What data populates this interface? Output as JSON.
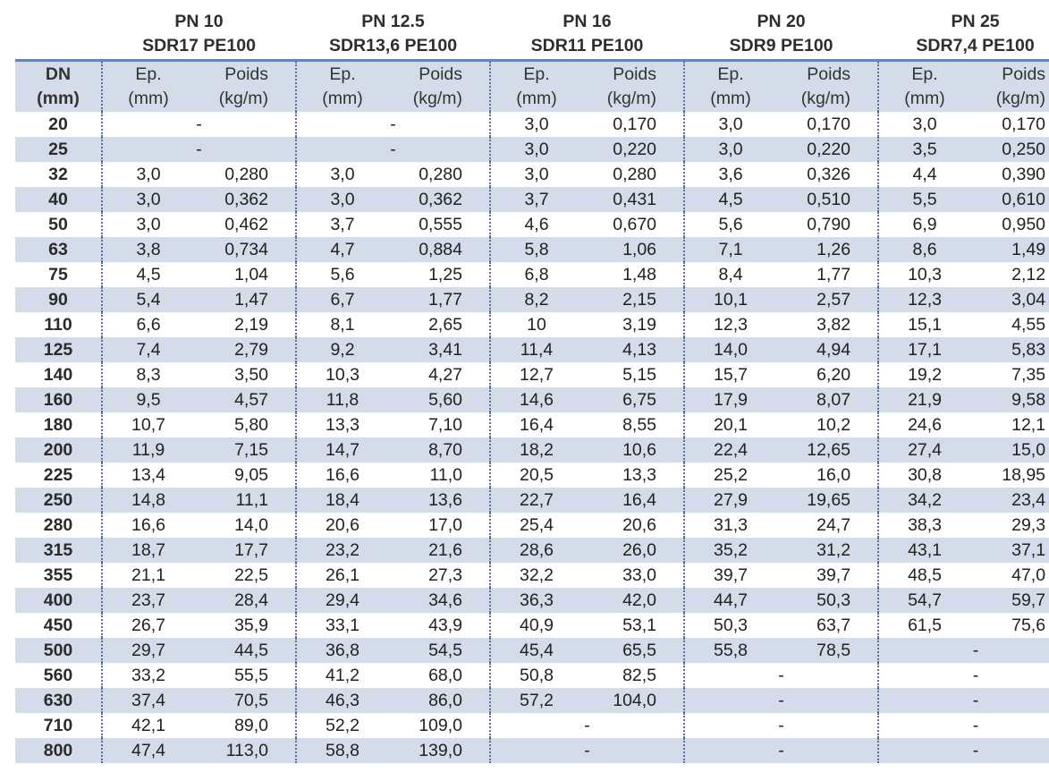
{
  "header": {
    "groups": [
      {
        "pn": "PN 10",
        "sdr": "SDR17 PE100"
      },
      {
        "pn": "PN 12.5",
        "sdr": "SDR13,6 PE100"
      },
      {
        "pn": "PN 16",
        "sdr": "SDR11 PE100"
      },
      {
        "pn": "PN 20",
        "sdr": "SDR9 PE100"
      },
      {
        "pn": "PN 25",
        "sdr": "SDR7,4 PE100"
      }
    ],
    "dn_label": "DN",
    "dn_unit": "(mm)",
    "ep_label": "Ep.",
    "ep_unit": "(mm)",
    "poids_label": "Poids",
    "poids_unit": "(kg/m)"
  },
  "rows": [
    {
      "dn": "20",
      "cells": [
        [
          "-"
        ],
        [
          "-"
        ],
        [
          "3,0",
          "0,170"
        ],
        [
          "3,0",
          "0,170"
        ],
        [
          "3,0",
          "0,170"
        ]
      ]
    },
    {
      "dn": "25",
      "cells": [
        [
          "-"
        ],
        [
          "-"
        ],
        [
          "3,0",
          "0,220"
        ],
        [
          "3,0",
          "0,220"
        ],
        [
          "3,5",
          "0,250"
        ]
      ]
    },
    {
      "dn": "32",
      "cells": [
        [
          "3,0",
          "0,280"
        ],
        [
          "3,0",
          "0,280"
        ],
        [
          "3,0",
          "0,280"
        ],
        [
          "3,6",
          "0,326"
        ],
        [
          "4,4",
          "0,390"
        ]
      ]
    },
    {
      "dn": "40",
      "cells": [
        [
          "3,0",
          "0,362"
        ],
        [
          "3,0",
          "0,362"
        ],
        [
          "3,7",
          "0,431"
        ],
        [
          "4,5",
          "0,510"
        ],
        [
          "5,5",
          "0,610"
        ]
      ]
    },
    {
      "dn": "50",
      "cells": [
        [
          "3,0",
          "0,462"
        ],
        [
          "3,7",
          "0,555"
        ],
        [
          "4,6",
          "0,670"
        ],
        [
          "5,6",
          "0,790"
        ],
        [
          "6,9",
          "0,950"
        ]
      ]
    },
    {
      "dn": "63",
      "cells": [
        [
          "3,8",
          "0,734"
        ],
        [
          "4,7",
          "0,884"
        ],
        [
          "5,8",
          "1,06"
        ],
        [
          "7,1",
          "1,26"
        ],
        [
          "8,6",
          "1,49"
        ]
      ]
    },
    {
      "dn": "75",
      "cells": [
        [
          "4,5",
          "1,04"
        ],
        [
          "5,6",
          "1,25"
        ],
        [
          "6,8",
          "1,48"
        ],
        [
          "8,4",
          "1,77"
        ],
        [
          "10,3",
          "2,12"
        ]
      ]
    },
    {
      "dn": "90",
      "cells": [
        [
          "5,4",
          "1,47"
        ],
        [
          "6,7",
          "1,77"
        ],
        [
          "8,2",
          "2,15"
        ],
        [
          "10,1",
          "2,57"
        ],
        [
          "12,3",
          "3,04"
        ]
      ]
    },
    {
      "dn": "110",
      "cells": [
        [
          "6,6",
          "2,19"
        ],
        [
          "8,1",
          "2,65"
        ],
        [
          "10",
          "3,19"
        ],
        [
          "12,3",
          "3,82"
        ],
        [
          "15,1",
          "4,55"
        ]
      ]
    },
    {
      "dn": "125",
      "cells": [
        [
          "7,4",
          "2,79"
        ],
        [
          "9,2",
          "3,41"
        ],
        [
          "11,4",
          "4,13"
        ],
        [
          "14,0",
          "4,94"
        ],
        [
          "17,1",
          "5,83"
        ]
      ]
    },
    {
      "dn": "140",
      "cells": [
        [
          "8,3",
          "3,50"
        ],
        [
          "10,3",
          "4,27"
        ],
        [
          "12,7",
          "5,15"
        ],
        [
          "15,7",
          "6,20"
        ],
        [
          "19,2",
          "7,35"
        ]
      ]
    },
    {
      "dn": "160",
      "cells": [
        [
          "9,5",
          "4,57"
        ],
        [
          "11,8",
          "5,60"
        ],
        [
          "14,6",
          "6,75"
        ],
        [
          "17,9",
          "8,07"
        ],
        [
          "21,9",
          "9,58"
        ]
      ]
    },
    {
      "dn": "180",
      "cells": [
        [
          "10,7",
          "5,80"
        ],
        [
          "13,3",
          "7,10"
        ],
        [
          "16,4",
          "8,55"
        ],
        [
          "20,1",
          "10,2"
        ],
        [
          "24,6",
          "12,1"
        ]
      ]
    },
    {
      "dn": "200",
      "cells": [
        [
          "11,9",
          "7,15"
        ],
        [
          "14,7",
          "8,70"
        ],
        [
          "18,2",
          "10,6"
        ],
        [
          "22,4",
          "12,65"
        ],
        [
          "27,4",
          "15,0"
        ]
      ]
    },
    {
      "dn": "225",
      "cells": [
        [
          "13,4",
          "9,05"
        ],
        [
          "16,6",
          "11,0"
        ],
        [
          "20,5",
          "13,3"
        ],
        [
          "25,2",
          "16,0"
        ],
        [
          "30,8",
          "18,95"
        ]
      ]
    },
    {
      "dn": "250",
      "cells": [
        [
          "14,8",
          "11,1"
        ],
        [
          "18,4",
          "13,6"
        ],
        [
          "22,7",
          "16,4"
        ],
        [
          "27,9",
          "19,65"
        ],
        [
          "34,2",
          "23,4"
        ]
      ]
    },
    {
      "dn": "280",
      "cells": [
        [
          "16,6",
          "14,0"
        ],
        [
          "20,6",
          "17,0"
        ],
        [
          "25,4",
          "20,6"
        ],
        [
          "31,3",
          "24,7"
        ],
        [
          "38,3",
          "29,3"
        ]
      ]
    },
    {
      "dn": "315",
      "cells": [
        [
          "18,7",
          "17,7"
        ],
        [
          "23,2",
          "21,6"
        ],
        [
          "28,6",
          "26,0"
        ],
        [
          "35,2",
          "31,2"
        ],
        [
          "43,1",
          "37,1"
        ]
      ]
    },
    {
      "dn": "355",
      "cells": [
        [
          "21,1",
          "22,5"
        ],
        [
          "26,1",
          "27,3"
        ],
        [
          "32,2",
          "33,0"
        ],
        [
          "39,7",
          "39,7"
        ],
        [
          "48,5",
          "47,0"
        ]
      ]
    },
    {
      "dn": "400",
      "cells": [
        [
          "23,7",
          "28,4"
        ],
        [
          "29,4",
          "34,6"
        ],
        [
          "36,3",
          "42,0"
        ],
        [
          "44,7",
          "50,3"
        ],
        [
          "54,7",
          "59,7"
        ]
      ]
    },
    {
      "dn": "450",
      "cells": [
        [
          "26,7",
          "35,9"
        ],
        [
          "33,1",
          "43,9"
        ],
        [
          "40,9",
          "53,1"
        ],
        [
          "50,3",
          "63,7"
        ],
        [
          "61,5",
          "75,6"
        ]
      ]
    },
    {
      "dn": "500",
      "cells": [
        [
          "29,7",
          "44,5"
        ],
        [
          "36,8",
          "54,5"
        ],
        [
          "45,4",
          "65,5"
        ],
        [
          "55,8",
          "78,5"
        ],
        [
          "-"
        ]
      ]
    },
    {
      "dn": "560",
      "cells": [
        [
          "33,2",
          "55,5"
        ],
        [
          "41,2",
          "68,0"
        ],
        [
          "50,8",
          "82,5"
        ],
        [
          "-"
        ],
        [
          "-"
        ]
      ]
    },
    {
      "dn": "630",
      "cells": [
        [
          "37,4",
          "70,5"
        ],
        [
          "46,3",
          "86,0"
        ],
        [
          "57,2",
          "104,0"
        ],
        [
          "-"
        ],
        [
          "-"
        ]
      ]
    },
    {
      "dn": "710",
      "cells": [
        [
          "42,1",
          "89,0"
        ],
        [
          "52,2",
          "109,0"
        ],
        [
          "-"
        ],
        [
          "-"
        ],
        [
          "-"
        ]
      ]
    },
    {
      "dn": "800",
      "cells": [
        [
          "47,4",
          "113,0"
        ],
        [
          "58,8",
          "139,0"
        ],
        [
          "-"
        ],
        [
          "-"
        ],
        [
          "-"
        ]
      ]
    }
  ]
}
